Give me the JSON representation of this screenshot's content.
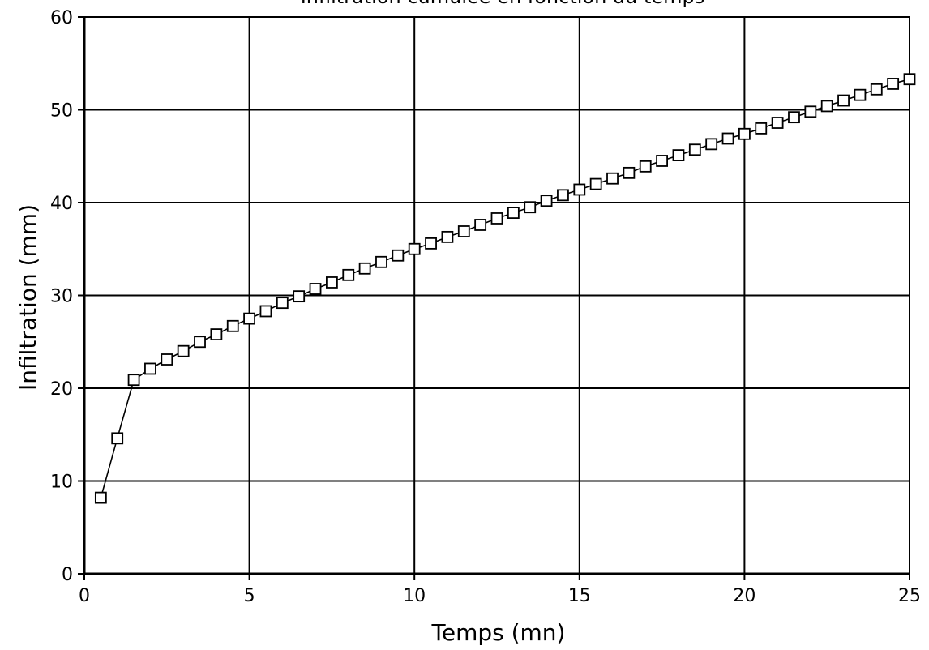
{
  "chart_data": {
    "type": "line",
    "title": "Infiltration cumulée en fonction du temps",
    "xlabel": "Temps (mn)",
    "ylabel": "Infiltration (mm)",
    "xlim": [
      0,
      25
    ],
    "ylim": [
      0,
      60
    ],
    "xticks": [
      0,
      5,
      10,
      15,
      20,
      25
    ],
    "yticks": [
      0,
      10,
      20,
      30,
      40,
      50,
      60
    ],
    "grid": true,
    "marker": "square",
    "series": [
      {
        "x": [
          0.5,
          1.0,
          1.5,
          2.0,
          2.5,
          3.0,
          3.5,
          4.0,
          4.5,
          5.0,
          5.5,
          6.0,
          6.5,
          7.0,
          7.5,
          8.0,
          8.5,
          9.0,
          9.5,
          10.0,
          10.5,
          11.0,
          11.5,
          12.0,
          12.5,
          13.0,
          13.5,
          14.0,
          14.5,
          15.0,
          15.5,
          16.0,
          16.5,
          17.0,
          17.5,
          18.0,
          18.5,
          19.0,
          19.5,
          20.0,
          20.5,
          21.0,
          21.5,
          22.0,
          22.5,
          23.0,
          23.5,
          24.0,
          24.5,
          25.0
        ],
        "values": [
          8.2,
          14.6,
          20.9,
          22.1,
          23.1,
          24.0,
          25.0,
          25.8,
          26.7,
          27.5,
          28.3,
          29.2,
          29.9,
          30.7,
          31.4,
          32.2,
          32.9,
          33.6,
          34.3,
          35.0,
          35.6,
          36.3,
          36.9,
          37.6,
          38.3,
          38.9,
          39.5,
          40.2,
          40.8,
          41.4,
          42.0,
          42.6,
          43.2,
          43.9,
          44.5,
          45.1,
          45.7,
          46.3,
          46.9,
          47.4,
          48.0,
          48.6,
          49.2,
          49.8,
          50.4,
          51.0,
          51.6,
          52.2,
          52.8,
          53.3
        ]
      }
    ]
  }
}
